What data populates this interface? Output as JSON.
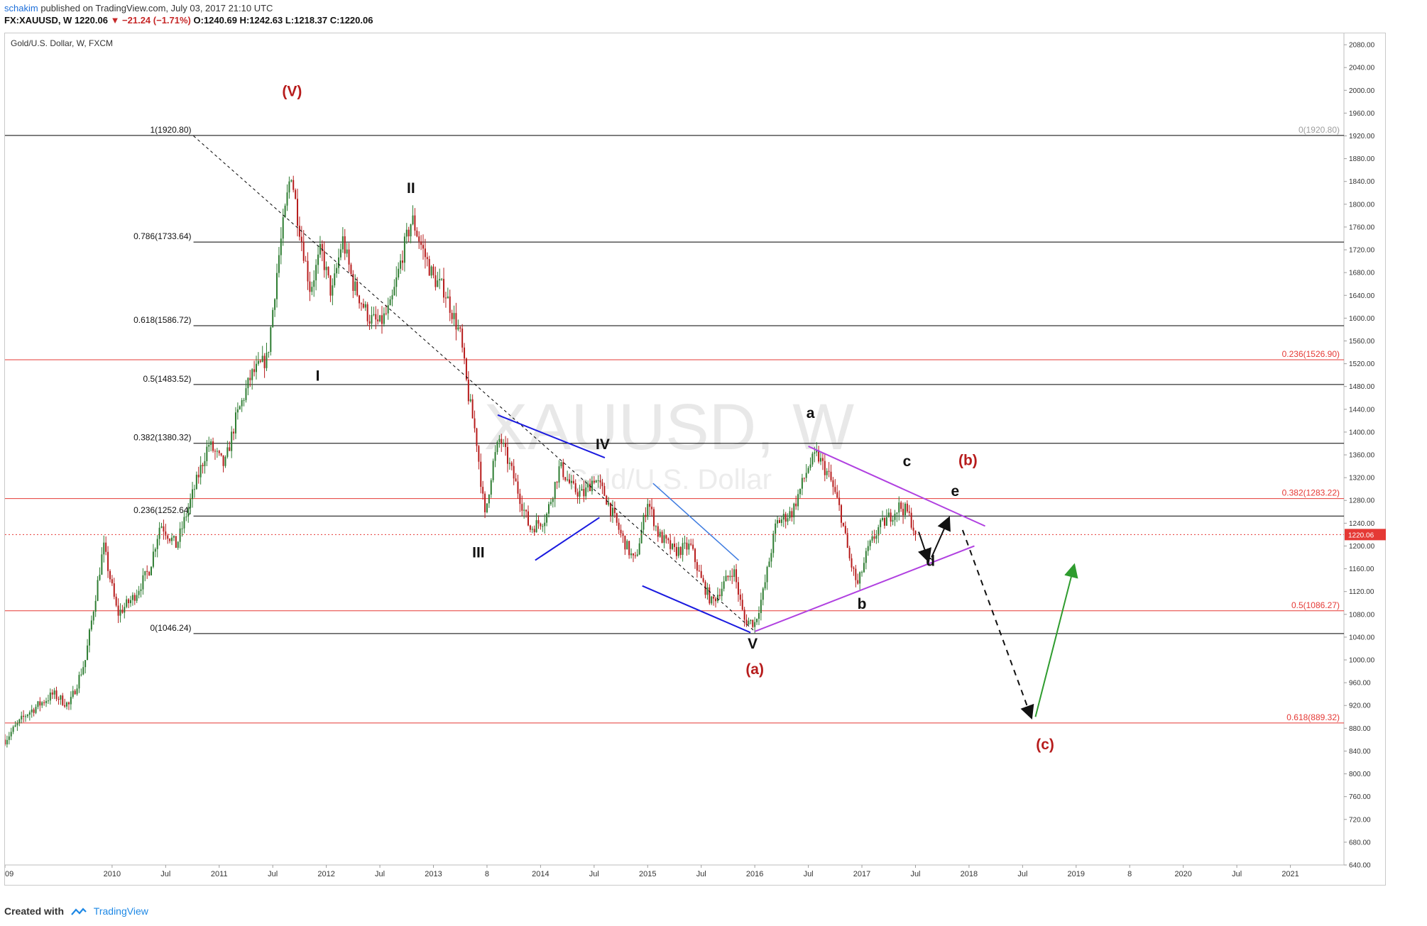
{
  "header": {
    "username": "schakim",
    "publish_text": "published on TradingView.com, July 03, 2017 21:10 UTC",
    "ohlc_line": "FX:XAUUSD, W  1220.06",
    "change_text": "▼ −21.24 (−1.71%)",
    "ohlc_values": "O:1240.69 H:1242.63 L:1218.37 C:1220.06"
  },
  "footer": {
    "created_with": "Created with",
    "brand": "TradingView"
  },
  "colors": {
    "bull": "#2e7d32",
    "bear": "#b71c1c",
    "red_level": "#e53935",
    "black_level": "#000000",
    "blue": "#1a1adf",
    "lightblue": "#3d7be0",
    "purple": "#b040e0",
    "green": "#2e9c2e",
    "wave_red": "#b71c1c"
  },
  "chart_data": {
    "type": "candlestick",
    "title": "Gold/U.S. Dollar, W, FXCM",
    "watermark": "XAUUSD, W",
    "watermark_sub": "Gold/U.S. Dollar",
    "ylim": [
      640,
      2100
    ],
    "xlim_year": [
      2009.0,
      2021.5
    ],
    "y_ticks": [
      "640.00",
      "680.00",
      "720.00",
      "760.00",
      "800.00",
      "840.00",
      "880.00",
      "920.00",
      "960.00",
      "1000.00",
      "1040.00",
      "1080.00",
      "1120.00",
      "1160.00",
      "1200.00",
      "1240.00",
      "1280.00",
      "1320.00",
      "1360.00",
      "1400.00",
      "1440.00",
      "1480.00",
      "1520.00",
      "1560.00",
      "1600.00",
      "1640.00",
      "1680.00",
      "1720.00",
      "1760.00",
      "1800.00",
      "1840.00",
      "1880.00",
      "1920.00",
      "1960.00",
      "2000.00",
      "2040.00",
      "2080.00"
    ],
    "x_ticks": [
      {
        "t": 2009.0,
        "label": "09"
      },
      {
        "t": 2010.0,
        "label": "2010"
      },
      {
        "t": 2010.5,
        "label": "Jul"
      },
      {
        "t": 2011.0,
        "label": "2011"
      },
      {
        "t": 2011.5,
        "label": "Jul"
      },
      {
        "t": 2012.0,
        "label": "2012"
      },
      {
        "t": 2012.5,
        "label": "Jul"
      },
      {
        "t": 2013.0,
        "label": "2013"
      },
      {
        "t": 2013.5,
        "label": "8"
      },
      {
        "t": 2014.0,
        "label": "2014"
      },
      {
        "t": 2014.5,
        "label": "Jul"
      },
      {
        "t": 2015.0,
        "label": "2015"
      },
      {
        "t": 2015.5,
        "label": "Jul"
      },
      {
        "t": 2016.0,
        "label": "2016"
      },
      {
        "t": 2016.5,
        "label": "Jul"
      },
      {
        "t": 2017.0,
        "label": "2017"
      },
      {
        "t": 2017.5,
        "label": "Jul"
      },
      {
        "t": 2018.0,
        "label": "2018"
      },
      {
        "t": 2018.5,
        "label": "Jul"
      },
      {
        "t": 2019.0,
        "label": "2019"
      },
      {
        "t": 2019.5,
        "label": "8"
      },
      {
        "t": 2020.0,
        "label": "2020"
      },
      {
        "t": 2020.5,
        "label": "Jul"
      },
      {
        "t": 2021.0,
        "label": "2021"
      }
    ],
    "price_path": [
      [
        2009.0,
        860
      ],
      [
        2009.2,
        905
      ],
      [
        2009.45,
        940
      ],
      [
        2009.6,
        920
      ],
      [
        2009.75,
        1000
      ],
      [
        2009.92,
        1200
      ],
      [
        2010.05,
        1080
      ],
      [
        2010.2,
        1110
      ],
      [
        2010.35,
        1160
      ],
      [
        2010.45,
        1240
      ],
      [
        2010.6,
        1200
      ],
      [
        2010.75,
        1290
      ],
      [
        2010.9,
        1380
      ],
      [
        2011.05,
        1340
      ],
      [
        2011.15,
        1420
      ],
      [
        2011.3,
        1500
      ],
      [
        2011.45,
        1530
      ],
      [
        2011.55,
        1700
      ],
      [
        2011.67,
        1860
      ],
      [
        2011.73,
        1780
      ],
      [
        2011.85,
        1650
      ],
      [
        2011.95,
        1720
      ],
      [
        2012.05,
        1640
      ],
      [
        2012.15,
        1740
      ],
      [
        2012.25,
        1660
      ],
      [
        2012.4,
        1600
      ],
      [
        2012.5,
        1590
      ],
      [
        2012.6,
        1620
      ],
      [
        2012.72,
        1720
      ],
      [
        2012.8,
        1775
      ],
      [
        2012.9,
        1720
      ],
      [
        2013.0,
        1670
      ],
      [
        2013.1,
        1650
      ],
      [
        2013.25,
        1570
      ],
      [
        2013.32,
        1470
      ],
      [
        2013.4,
        1390
      ],
      [
        2013.48,
        1250
      ],
      [
        2013.55,
        1340
      ],
      [
        2013.62,
        1390
      ],
      [
        2013.75,
        1320
      ],
      [
        2013.9,
        1230
      ],
      [
        2014.05,
        1250
      ],
      [
        2014.18,
        1340
      ],
      [
        2014.3,
        1300
      ],
      [
        2014.4,
        1290
      ],
      [
        2014.5,
        1320
      ],
      [
        2014.6,
        1290
      ],
      [
        2014.75,
        1220
      ],
      [
        2014.88,
        1170
      ],
      [
        2015.0,
        1280
      ],
      [
        2015.1,
        1220
      ],
      [
        2015.25,
        1190
      ],
      [
        2015.4,
        1200
      ],
      [
        2015.5,
        1140
      ],
      [
        2015.6,
        1100
      ],
      [
        2015.7,
        1130
      ],
      [
        2015.8,
        1160
      ],
      [
        2015.9,
        1070
      ],
      [
        2016.0,
        1065
      ],
      [
        2016.08,
        1120
      ],
      [
        2016.2,
        1240
      ],
      [
        2016.35,
        1260
      ],
      [
        2016.5,
        1340
      ],
      [
        2016.58,
        1360
      ],
      [
        2016.7,
        1320
      ],
      [
        2016.8,
        1260
      ],
      [
        2016.88,
        1180
      ],
      [
        2016.96,
        1130
      ],
      [
        2017.05,
        1190
      ],
      [
        2017.15,
        1230
      ],
      [
        2017.25,
        1250
      ],
      [
        2017.35,
        1270
      ],
      [
        2017.42,
        1260
      ],
      [
        2017.47,
        1240
      ],
      [
        2017.5,
        1220
      ]
    ],
    "levels": [
      {
        "value": 1920.8,
        "label": "1(1920.80)",
        "side": "left",
        "color": "#000000"
      },
      {
        "value": 1733.64,
        "label": "0.786(1733.64)",
        "side": "left",
        "color": "#000000"
      },
      {
        "value": 1586.72,
        "label": "0.618(1586.72)",
        "side": "left",
        "color": "#000000"
      },
      {
        "value": 1483.52,
        "label": "0.5(1483.52)",
        "side": "left",
        "color": "#000000"
      },
      {
        "value": 1380.32,
        "label": "0.382(1380.32)",
        "side": "left",
        "color": "#000000"
      },
      {
        "value": 1252.64,
        "label": "0.236(1252.64)",
        "side": "left",
        "color": "#000000"
      },
      {
        "value": 1046.24,
        "label": "0(1046.24)",
        "side": "left",
        "color": "#000000"
      },
      {
        "value": 1920.8,
        "label": "0(1920.80)",
        "side": "right",
        "color": "#9e9e9e"
      },
      {
        "value": 1526.9,
        "label": "0.236(1526.90)",
        "side": "right",
        "color": "#e53935"
      },
      {
        "value": 1283.22,
        "label": "0.382(1283.22)",
        "side": "right",
        "color": "#e53935"
      },
      {
        "value": 1086.27,
        "label": "0.5(1086.27)",
        "side": "right",
        "color": "#e53935"
      },
      {
        "value": 889.32,
        "label": "0.618(889.32)",
        "side": "right",
        "color": "#e53935"
      }
    ],
    "last_price": {
      "value": 1220.06,
      "label": "1220.06"
    },
    "wave_labels": [
      {
        "text": "(V)",
        "t": 2011.68,
        "p": 1990,
        "color": "#b71c1c"
      },
      {
        "text": "II",
        "t": 2012.79,
        "p": 1820,
        "color": "#111111"
      },
      {
        "text": "I",
        "t": 2011.92,
        "p": 1490,
        "color": "#111111"
      },
      {
        "text": "III",
        "t": 2013.42,
        "p": 1180,
        "color": "#111111"
      },
      {
        "text": "IV",
        "t": 2014.58,
        "p": 1370,
        "color": "#111111"
      },
      {
        "text": "V",
        "t": 2015.98,
        "p": 1020,
        "color": "#111111"
      },
      {
        "text": "(a)",
        "t": 2016.0,
        "p": 975,
        "color": "#b71c1c"
      },
      {
        "text": "a",
        "t": 2016.52,
        "p": 1425,
        "color": "#111111"
      },
      {
        "text": "b",
        "t": 2017.0,
        "p": 1090,
        "color": "#111111"
      },
      {
        "text": "c",
        "t": 2017.42,
        "p": 1340,
        "color": "#111111"
      },
      {
        "text": "(b)",
        "t": 2017.99,
        "p": 1342,
        "color": "#b71c1c"
      },
      {
        "text": "d",
        "t": 2017.64,
        "p": 1165,
        "color": "#111111"
      },
      {
        "text": "e",
        "t": 2017.87,
        "p": 1288,
        "color": "#111111"
      },
      {
        "text": "(c)",
        "t": 2018.71,
        "p": 843,
        "color": "#b71c1c"
      }
    ],
    "trend_lines": [
      {
        "from": [
          2010.76,
          1920
        ],
        "to": [
          2016.0,
          1050
        ],
        "color": "#000000",
        "dash": true,
        "width": 1
      },
      {
        "from": [
          2013.6,
          1430
        ],
        "to": [
          2014.6,
          1355
        ],
        "color": "#1a1adf",
        "dash": false,
        "width": 2
      },
      {
        "from": [
          2013.95,
          1175
        ],
        "to": [
          2014.55,
          1250
        ],
        "color": "#1a1adf",
        "dash": false,
        "width": 2
      },
      {
        "from": [
          2015.05,
          1310
        ],
        "to": [
          2015.85,
          1175
        ],
        "color": "#3d7be0",
        "dash": false,
        "width": 1.5
      },
      {
        "from": [
          2014.95,
          1130
        ],
        "to": [
          2015.96,
          1048
        ],
        "color": "#1a1adf",
        "dash": false,
        "width": 2
      },
      {
        "from": [
          2016.5,
          1375
        ],
        "to": [
          2018.15,
          1235
        ],
        "color": "#b040e0",
        "dash": false,
        "width": 2
      },
      {
        "from": [
          2016.0,
          1050
        ],
        "to": [
          2018.05,
          1200
        ],
        "color": "#b040e0",
        "dash": false,
        "width": 2
      }
    ],
    "arrows": [
      {
        "from": [
          2017.53,
          1225
        ],
        "to": [
          2017.62,
          1175
        ],
        "color": "#111111",
        "dash": false
      },
      {
        "from": [
          2017.65,
          1180
        ],
        "to": [
          2017.81,
          1248
        ],
        "color": "#111111",
        "dash": false
      },
      {
        "from": [
          2017.94,
          1228
        ],
        "to": [
          2018.58,
          900
        ],
        "color": "#111111",
        "dash": true
      },
      {
        "from": [
          2018.62,
          900
        ],
        "to": [
          2018.98,
          1165
        ],
        "color": "#2e9c2e",
        "dash": false
      }
    ]
  }
}
